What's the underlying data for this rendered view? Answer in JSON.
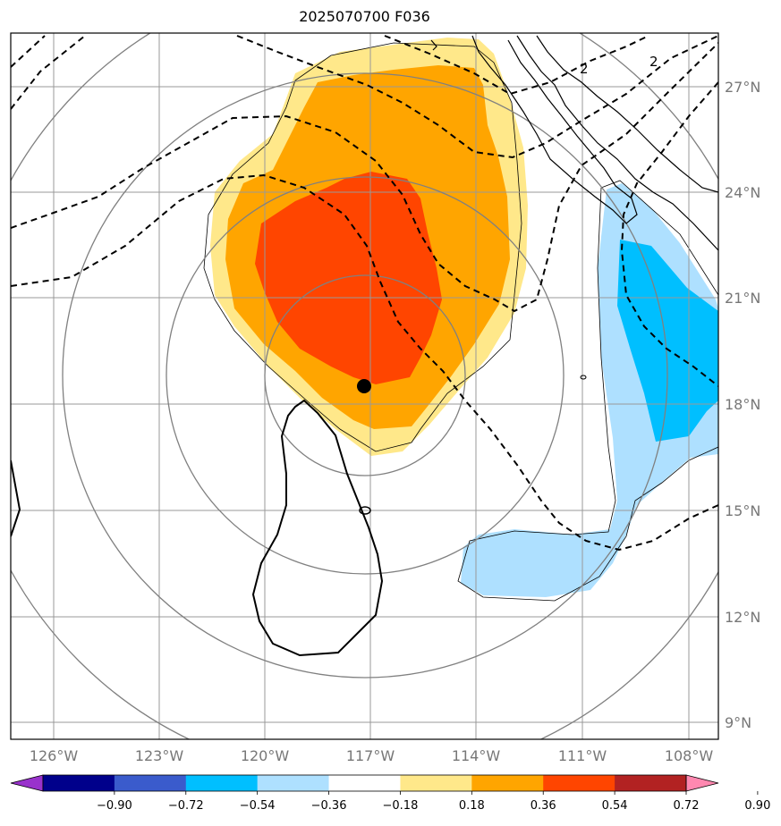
{
  "title": "2025070700 F036",
  "lon_labels": [
    "126°W",
    "123°W",
    "120°W",
    "117°W",
    "114°W",
    "111°W",
    "108°W"
  ],
  "lat_labels": [
    "27°N",
    "24°N",
    "21°N",
    "18°N",
    "15°N",
    "12°N",
    "9°N"
  ],
  "contour_labels": [
    "2",
    "2",
    "0"
  ],
  "colorbar": {
    "ticks": [
      "−0.90",
      "−0.72",
      "−0.54",
      "−0.36",
      "−0.18",
      "0.18",
      "0.36",
      "0.54",
      "0.72",
      "0.90"
    ],
    "colors": [
      "#9932CC",
      "#00008B",
      "#3A5BCC",
      "#00BFFF",
      "#AEE0FF",
      "#FFFFFF",
      "#FFE88A",
      "#FFA500",
      "#FF4500",
      "#B22222",
      "#FF88B0"
    ]
  },
  "center_marker": {
    "lon": -117.2,
    "lat": 18.5
  }
}
